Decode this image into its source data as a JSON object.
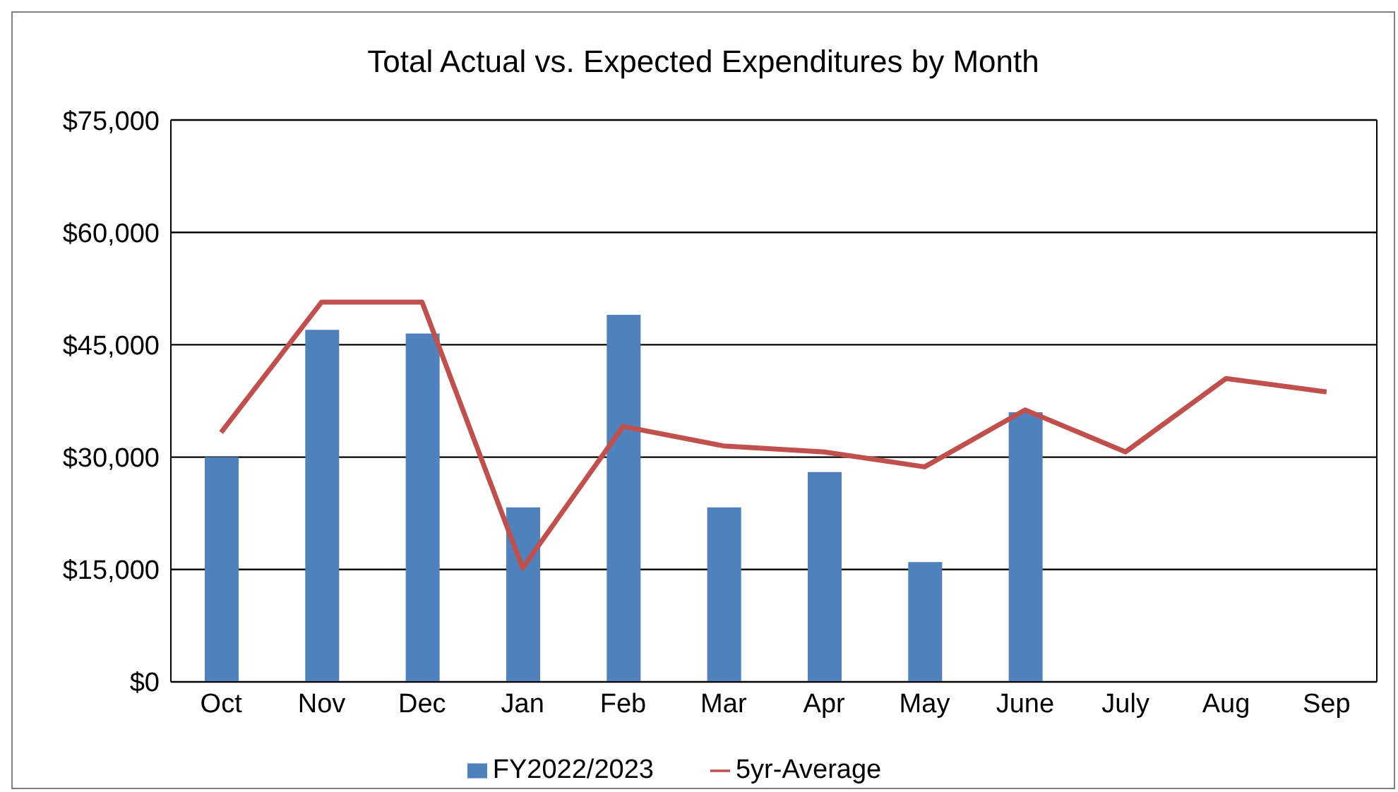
{
  "chart_data": {
    "type": "bar",
    "title": "Total Actual vs. Expected Expenditures by Month",
    "categories": [
      "Oct",
      "Nov",
      "Dec",
      "Jan",
      "Feb",
      "Mar",
      "Apr",
      "May",
      "June",
      "July",
      "Aug",
      "Sep"
    ],
    "series": [
      {
        "name": "FY2022/2023",
        "color": "#4f81bd",
        "values": [
          30000,
          47000,
          46500,
          23300,
          49000,
          23300,
          28000,
          16000,
          36000,
          null,
          null,
          null
        ]
      },
      {
        "name": "5yr-Average",
        "type": "line",
        "color": "#c0504d",
        "values": [
          33300,
          50700,
          50700,
          15200,
          34100,
          31500,
          30700,
          28700,
          36300,
          30700,
          40500,
          38700
        ]
      }
    ],
    "ylim": [
      0,
      75000
    ],
    "yticks": [
      {
        "value": 0,
        "label": "$0"
      },
      {
        "value": 15000,
        "label": "$15,000"
      },
      {
        "value": 30000,
        "label": "$30,000"
      },
      {
        "value": 45000,
        "label": "$45,000"
      },
      {
        "value": 60000,
        "label": "$60,000"
      },
      {
        "value": 75000,
        "label": "$75,000"
      }
    ],
    "grid": "y",
    "legend": "bottom",
    "marker": "none",
    "line_style": "solid"
  }
}
